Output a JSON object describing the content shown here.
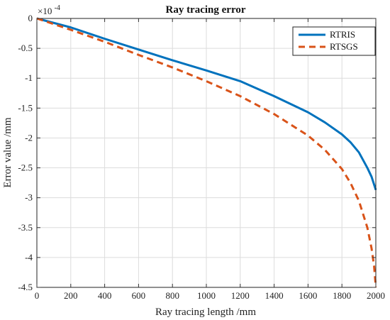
{
  "chart_data": {
    "type": "line",
    "title": "Ray tracing error",
    "xlabel": "Ray tracing length /mm",
    "ylabel": "Error value /mm",
    "y_exponent_base": "×10",
    "y_exponent_power": "-4",
    "xlim": [
      0,
      2000
    ],
    "ylim": [
      -4.5,
      0
    ],
    "x_ticks": [
      0,
      200,
      400,
      600,
      800,
      1000,
      1200,
      1400,
      1600,
      1800,
      2000
    ],
    "y_ticks": [
      0,
      -0.5,
      -1,
      -1.5,
      -2,
      -2.5,
      -3,
      -3.5,
      -4,
      -4.5
    ],
    "x_tick_labels": [
      "0",
      "200",
      "400",
      "600",
      "800",
      "1000",
      "1200",
      "1400",
      "1600",
      "1800",
      "2000"
    ],
    "y_tick_labels": [
      "0",
      "-0.5",
      "-1",
      "-1.5",
      "-2",
      "-2.5",
      "-3",
      "-3.5",
      "-4",
      "-4.5"
    ],
    "grid": true,
    "legend_position": "top-right",
    "series": [
      {
        "name": "RTRIS",
        "color": "#0072BD",
        "dash": "solid",
        "x": [
          0,
          200,
          400,
          600,
          800,
          1000,
          1200,
          1400,
          1600,
          1700,
          1800,
          1850,
          1900,
          1950,
          1975,
          2000
        ],
        "y": [
          0,
          -0.15,
          -0.34,
          -0.52,
          -0.7,
          -0.87,
          -1.05,
          -1.3,
          -1.57,
          -1.74,
          -1.94,
          -2.07,
          -2.24,
          -2.5,
          -2.65,
          -2.87
        ]
      },
      {
        "name": "RTSGS",
        "color": "#D95319",
        "dash": "dashed",
        "x": [
          0,
          200,
          400,
          600,
          800,
          1000,
          1200,
          1400,
          1600,
          1700,
          1800,
          1850,
          1900,
          1950,
          1975,
          1990,
          2000
        ],
        "y": [
          0,
          -0.19,
          -0.39,
          -0.61,
          -0.82,
          -1.05,
          -1.3,
          -1.6,
          -1.96,
          -2.2,
          -2.52,
          -2.75,
          -3.05,
          -3.5,
          -3.85,
          -4.15,
          -4.5
        ]
      }
    ]
  }
}
